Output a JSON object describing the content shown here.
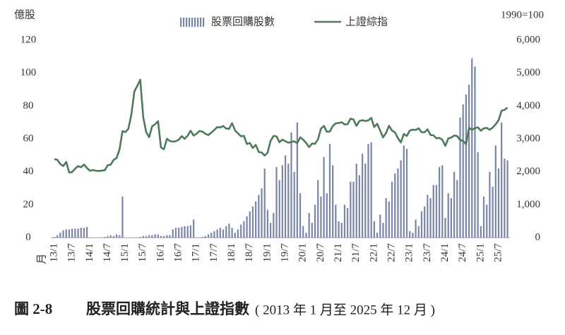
{
  "chart_data": {
    "type": "bar",
    "figure_label": "圖 2-8",
    "title": "股票回購統計與上證指數",
    "subtitle": "( 2013 年 1 月至 2025 年 12 月 )",
    "y_label": "億股",
    "y2_label": "1990=100",
    "x_label": "月",
    "categories": [
      "13/1",
      null,
      null,
      null,
      null,
      null,
      "13/7",
      null,
      null,
      null,
      null,
      null,
      "14/1",
      null,
      null,
      null,
      null,
      null,
      "14/7",
      null,
      null,
      null,
      null,
      null,
      "15/1",
      null,
      null,
      null,
      null,
      null,
      "15/7",
      null,
      null,
      null,
      null,
      null,
      "16/1",
      null,
      null,
      null,
      null,
      null,
      "16/7",
      null,
      null,
      null,
      null,
      null,
      "17/1",
      null,
      null,
      null,
      null,
      null,
      "17/7",
      null,
      null,
      null,
      null,
      null,
      "18/1",
      null,
      null,
      null,
      null,
      null,
      "18/7",
      null,
      null,
      null,
      null,
      null,
      "19/1",
      null,
      null,
      null,
      null,
      null,
      "19/7",
      null,
      null,
      null,
      null,
      null,
      "20/1",
      null,
      null,
      null,
      null,
      null,
      "20/7",
      null,
      null,
      null,
      null,
      null,
      "21/1",
      null,
      null,
      null,
      null,
      null,
      "21/7",
      null,
      null,
      null,
      null,
      null,
      "22/1",
      null,
      null,
      null,
      null,
      null,
      "22/7",
      null,
      null,
      null,
      null,
      null,
      "23/1",
      null,
      null,
      null,
      null,
      null,
      "23/7",
      null,
      null,
      null,
      null,
      null,
      "24/1",
      null,
      null,
      null,
      null,
      null,
      "24/7",
      null,
      null,
      null,
      null,
      null,
      "25/1",
      null,
      null,
      null,
      null,
      null,
      "25/7",
      null,
      null,
      null
    ],
    "series": [
      {
        "name": "股票回購股數",
        "type": "bar",
        "color": "#7a86a8",
        "values": [
          0.5,
          1.5,
          3,
          4.5,
          5,
          5,
          5.5,
          5.5,
          5.5,
          6,
          6,
          6.5,
          0,
          0,
          0,
          0,
          0,
          0.5,
          1,
          1.5,
          1,
          2,
          1.5,
          25,
          0,
          0,
          0,
          0,
          0,
          0.5,
          1,
          1,
          1.5,
          1.5,
          2,
          2,
          1,
          1,
          1.5,
          1.5,
          5,
          6,
          6,
          6.5,
          7,
          7,
          7.5,
          11,
          0,
          0,
          0.5,
          1,
          2,
          3,
          4,
          5,
          6,
          5,
          7,
          8.5,
          6,
          3,
          5,
          8,
          10,
          13,
          16,
          19,
          22,
          26,
          30,
          42,
          17,
          9,
          15,
          43,
          35,
          44,
          50,
          45,
          64,
          40,
          70,
          27,
          7,
          3,
          15,
          9,
          20,
          35,
          25,
          49,
          27,
          57,
          44,
          20,
          10,
          9,
          20,
          18,
          34,
          34,
          45,
          38,
          51,
          45,
          57,
          58,
          10,
          3,
          14,
          9,
          24,
          22,
          34,
          39,
          42,
          47,
          56,
          54,
          4,
          3,
          11,
          7,
          16,
          19,
          26,
          24,
          32,
          32,
          43,
          44,
          12,
          27,
          24,
          40,
          35,
          73,
          81,
          87,
          93,
          109,
          104,
          52,
          7,
          25,
          20,
          40,
          31,
          56,
          42,
          70,
          48,
          47
        ]
      },
      {
        "name": "上證綜指",
        "type": "line",
        "axis": "y2",
        "color": "#4d7a5a",
        "values": [
          2385,
          2365,
          2236,
          2178,
          2300,
          1979,
          1994,
          2098,
          2175,
          2141,
          2220,
          2116,
          2033,
          2056,
          2033,
          2026,
          2039,
          2048,
          2201,
          2217,
          2364,
          2420,
          2683,
          3235,
          3210,
          3310,
          3748,
          4441,
          4612,
          4800,
          3664,
          3206,
          3053,
          3383,
          3445,
          3539,
          2738,
          2688,
          3004,
          2938,
          2917,
          2930,
          2979,
          3085,
          3005,
          3100,
          3250,
          3104,
          3159,
          3242,
          3223,
          3155,
          3117,
          3192,
          3273,
          3361,
          3349,
          3393,
          3317,
          3307,
          3481,
          3259,
          3169,
          3082,
          3095,
          2847,
          2876,
          2725,
          2821,
          2603,
          2588,
          2494,
          2585,
          2941,
          3091,
          3078,
          2899,
          2979,
          2932,
          2886,
          2905,
          2929,
          2872,
          3050,
          2977,
          2880,
          2750,
          2860,
          2852,
          2985,
          3310,
          3396,
          3218,
          3225,
          3392,
          3473,
          3483,
          3509,
          3441,
          3447,
          3615,
          3591,
          3397,
          3544,
          3568,
          3547,
          3564,
          3640,
          3361,
          3462,
          3252,
          3047,
          3186,
          3399,
          3253,
          3202,
          3024,
          2893,
          3151,
          3089,
          3255,
          3280,
          3273,
          3323,
          3205,
          3202,
          3291,
          3120,
          3110,
          3018,
          3030,
          2975,
          2789,
          3015,
          3041,
          3104,
          3087,
          2967,
          2939,
          2842,
          3336,
          3279,
          3326,
          3352,
          3250,
          3321,
          3336,
          3279,
          3347,
          3444,
          3573,
          3858,
          3883,
          3954
        ]
      }
    ],
    "ylim": [
      0,
      120
    ],
    "yticks": [
      0,
      20,
      40,
      60,
      80,
      100,
      120
    ],
    "y2lim": [
      0,
      6000
    ],
    "y2ticks": [
      0,
      {
        "value": 1000,
        "label": "1,000"
      },
      {
        "value": 2000,
        "label": "2,000"
      },
      {
        "value": 3000,
        "label": "3,000"
      },
      {
        "value": 4000,
        "label": "4,000"
      },
      {
        "value": 5000,
        "label": "5,000"
      },
      {
        "value": 6000,
        "label": "6,000"
      }
    ],
    "grid": false,
    "legend": "top"
  }
}
